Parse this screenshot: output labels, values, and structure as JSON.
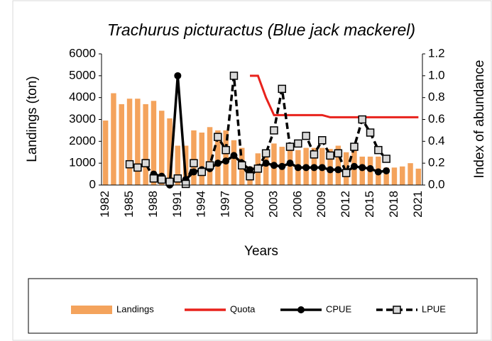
{
  "chart_data": {
    "type": "bar",
    "title": "Trachurus picturactus (Blue jack mackerel)",
    "x_label": "Years",
    "y_label": "Landings (ton)",
    "y2_label": "Index of abundance",
    "categories": [
      "1982",
      null,
      null,
      "1985",
      null,
      null,
      "1988",
      null,
      null,
      "1991",
      null,
      null,
      "1994",
      null,
      null,
      "1997",
      null,
      null,
      "2000",
      null,
      null,
      "2003",
      null,
      null,
      "2006",
      null,
      null,
      "2009",
      null,
      null,
      "2012",
      null,
      null,
      "2015",
      null,
      null,
      "2018",
      null,
      null,
      "2021"
    ],
    "ylim": [
      0,
      6000
    ],
    "yticks": [
      0,
      1000,
      2000,
      3000,
      4000,
      5000,
      6000
    ],
    "y2lim": [
      0,
      1.2
    ],
    "y2ticks": [
      {
        "value": 0,
        "label": "0.0"
      },
      0.2,
      0.4,
      0.6,
      0.8,
      {
        "value": 1,
        "label": "1.0"
      },
      1.2
    ],
    "series": [
      {
        "name": "Landings",
        "type": "bar",
        "color": "#f4a35c",
        "values": [
          2950,
          4200,
          3700,
          3950,
          3950,
          3700,
          3850,
          3400,
          3050,
          1800,
          1800,
          2500,
          2400,
          2650,
          2500,
          2500,
          2050,
          1700,
          850,
          1450,
          1450,
          1900,
          1750,
          1850,
          1600,
          1700,
          1700,
          1700,
          1650,
          1800,
          1500,
          1600,
          1300,
          1300,
          1300,
          800,
          800,
          850,
          1000,
          750
        ]
      },
      {
        "name": "Quota",
        "type": "line",
        "color": "#e8221c",
        "values": [
          null,
          null,
          null,
          null,
          null,
          null,
          null,
          null,
          null,
          null,
          null,
          null,
          null,
          null,
          null,
          null,
          null,
          null,
          5000,
          5000,
          4000,
          3200,
          3200,
          3200,
          3200,
          3200,
          3200,
          3200,
          3100,
          3100,
          3100,
          3100,
          3100,
          3100,
          3100,
          3100,
          3100,
          3100,
          3100,
          3100
        ]
      },
      {
        "name": "CPUE",
        "type": "line",
        "axis": "y2",
        "color": "#000000",
        "marker": "circle",
        "values": [
          null,
          null,
          null,
          null,
          null,
          null,
          0.1,
          0.08,
          0.0,
          1.0,
          0.05,
          0.12,
          0.14,
          0.15,
          0.2,
          0.22,
          0.27,
          0.2,
          0.14,
          0.16,
          0.2,
          0.18,
          0.17,
          0.2,
          0.16,
          0.16,
          0.16,
          0.16,
          0.14,
          0.14,
          0.12,
          0.17,
          0.16,
          0.15,
          0.12,
          0.13,
          null,
          null,
          null,
          null
        ]
      },
      {
        "name": "LPUE",
        "type": "line",
        "axis": "y2",
        "color": "#000000",
        "marker": "square",
        "line_style": "dashed",
        "values": [
          null,
          null,
          null,
          0.19,
          0.16,
          0.2,
          0.06,
          0.05,
          0.03,
          0.06,
          0.01,
          0.2,
          0.12,
          0.18,
          0.44,
          0.32,
          1.0,
          0.18,
          0.08,
          0.15,
          0.29,
          0.5,
          0.88,
          0.35,
          0.38,
          0.45,
          0.28,
          0.41,
          0.27,
          0.29,
          0.11,
          0.35,
          0.6,
          0.48,
          0.32,
          0.24,
          null,
          null,
          null,
          null
        ]
      }
    ]
  }
}
